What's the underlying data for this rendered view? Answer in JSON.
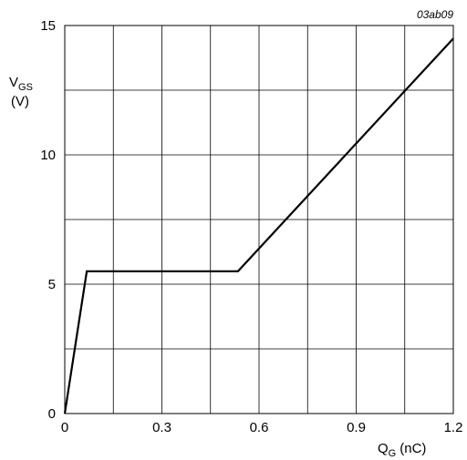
{
  "chart_data": {
    "type": "line",
    "title": "",
    "figure_ref": "03ab09",
    "xlabel": {
      "main": "Q",
      "sub": "G",
      "unit": "(nC)"
    },
    "ylabel": {
      "main": "V",
      "sub": "GS",
      "unit": "(V)"
    },
    "xlim": [
      0,
      1.2
    ],
    "ylim": [
      0,
      15
    ],
    "x_ticks": [
      0,
      0.3,
      0.6,
      0.9,
      1.2
    ],
    "x_tick_labels": [
      "0",
      "0.3",
      "0.6",
      "0.9",
      "1.2"
    ],
    "y_ticks": [
      0,
      5,
      10,
      15
    ],
    "y_tick_labels": [
      "0",
      "5",
      "10",
      "15"
    ],
    "x_gridlines": [
      0,
      0.15,
      0.3,
      0.45,
      0.6,
      0.75,
      0.9,
      1.05,
      1.2
    ],
    "y_gridlines": [
      0,
      2.5,
      5,
      7.5,
      10,
      12.5,
      15
    ],
    "grid": true,
    "legend": "none",
    "line_color": "#000000",
    "series": [
      {
        "x": [
          0,
          0.068,
          0.535,
          1.2
        ],
        "y": [
          0,
          5.5,
          5.5,
          14.5
        ]
      }
    ]
  }
}
